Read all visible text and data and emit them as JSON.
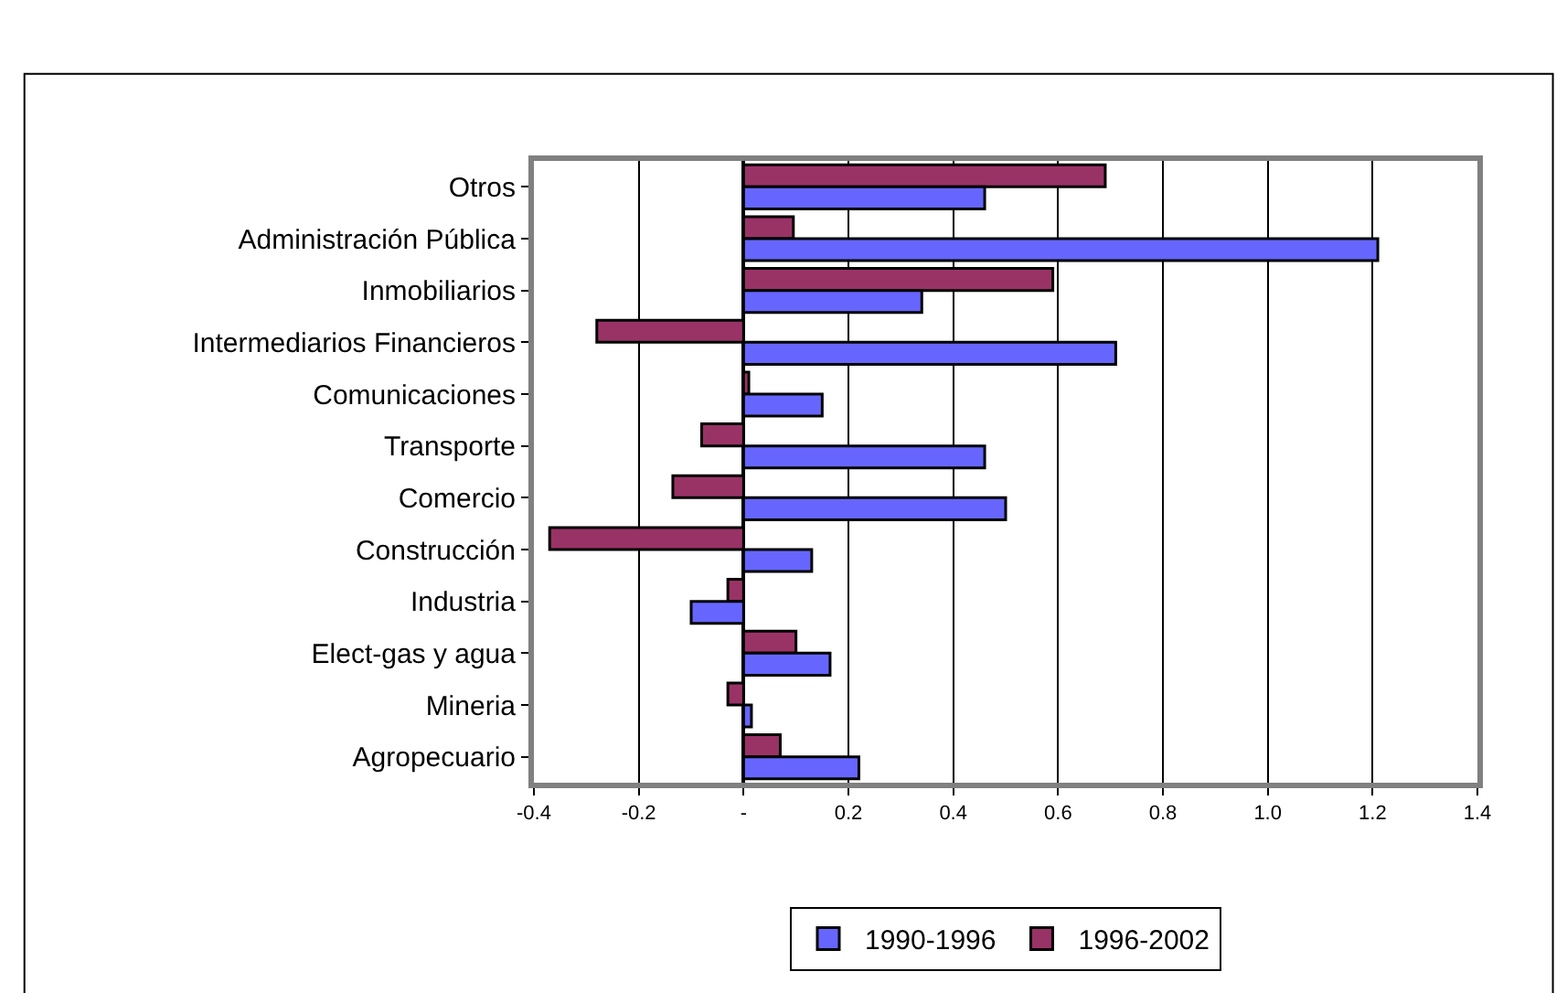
{
  "chart_data": {
    "type": "bar",
    "orientation": "horizontal",
    "categories": [
      "Otros",
      "Administración Pública",
      "Inmobiliarios",
      "Intermediarios Financieros",
      "Comunicaciones",
      "Transporte",
      "Comercio",
      "Construcción",
      "Industria",
      "Elect-gas y agua",
      "Mineria",
      "Agropecuario"
    ],
    "series": [
      {
        "name": "1990-1996",
        "color": "#6666ff",
        "values": [
          0.46,
          1.21,
          0.34,
          0.71,
          0.15,
          0.46,
          0.5,
          0.13,
          -0.1,
          0.165,
          0.015,
          0.22
        ]
      },
      {
        "name": "1996-2002",
        "color": "#993366",
        "values": [
          0.69,
          0.095,
          0.59,
          -0.28,
          0.01,
          -0.08,
          -0.135,
          -0.37,
          -0.03,
          0.1,
          -0.03,
          0.07
        ]
      }
    ],
    "xlim": [
      -0.4,
      1.4
    ],
    "xticks": [
      -0.4,
      -0.2,
      {
        "value": 0,
        "label": "-"
      },
      0.2,
      0.4,
      0.6,
      0.8,
      {
        "value": 1,
        "label": "1.0"
      },
      1.2,
      1.4
    ],
    "grid": "x",
    "legend": "bottom"
  }
}
